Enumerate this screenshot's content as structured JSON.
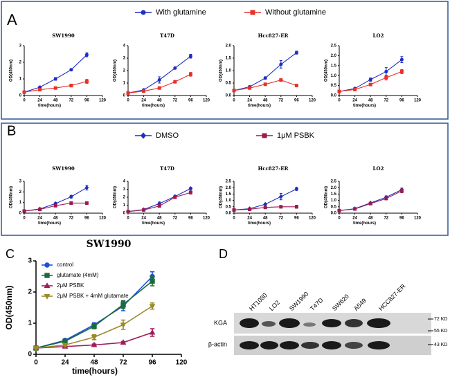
{
  "panel_labels": [
    "A",
    "B",
    "C",
    "D"
  ],
  "chart_data": [
    {
      "type": "line",
      "title": "SW1990",
      "xlabel": "time(hours)",
      "ylabel": "OD(450nm)",
      "x": [
        0,
        24,
        48,
        72,
        96
      ],
      "xlim": [
        0,
        120
      ],
      "xticks": [
        0,
        24,
        48,
        72,
        96,
        120
      ],
      "ylim": [
        0,
        3
      ],
      "yticks": [
        0,
        1,
        2,
        3
      ],
      "series": [
        {
          "name": "With glutamine",
          "color": "#1f2fbf",
          "marker": "circle",
          "values": [
            0.2,
            0.5,
            1.0,
            1.55,
            2.45
          ],
          "errors": [
            0.03,
            0.05,
            0.08,
            0.06,
            0.12
          ]
        },
        {
          "name": "Without glutamine",
          "color": "#e8302a",
          "marker": "square",
          "values": [
            0.2,
            0.35,
            0.45,
            0.6,
            0.85
          ],
          "errors": [
            0.03,
            0.03,
            0.04,
            0.08,
            0.12
          ]
        }
      ]
    },
    {
      "type": "line",
      "title": "T47D",
      "xlabel": "time(hours)",
      "ylabel": "OD(450nm)",
      "x": [
        0,
        24,
        48,
        72,
        96
      ],
      "xlim": [
        0,
        120
      ],
      "xticks": [
        0,
        24,
        48,
        72,
        96,
        120
      ],
      "ylim": [
        0,
        4
      ],
      "yticks": [
        0,
        1,
        2,
        3,
        4
      ],
      "series": [
        {
          "color": "#1f2fbf",
          "marker": "circle",
          "values": [
            0.2,
            0.45,
            1.25,
            2.2,
            3.15
          ],
          "errors": [
            0.03,
            0.05,
            0.25,
            0.08,
            0.15
          ]
        },
        {
          "color": "#e8302a",
          "marker": "square",
          "values": [
            0.2,
            0.35,
            0.6,
            1.1,
            1.7
          ],
          "errors": [
            0.03,
            0.03,
            0.06,
            0.1,
            0.15
          ]
        }
      ]
    },
    {
      "type": "line",
      "title": "Hcc827-ER",
      "xlabel": "time(hours)",
      "ylabel": "OD(450nm)",
      "x": [
        0,
        24,
        48,
        72,
        96
      ],
      "xlim": [
        0,
        120
      ],
      "xticks": [
        0,
        24,
        48,
        72,
        96,
        120
      ],
      "ylim": [
        0,
        2
      ],
      "yticks": [
        {
          "value": 0,
          "label": "0.0"
        },
        {
          "value": 0.5,
          "label": "0.5"
        },
        {
          "value": 1,
          "label": "1.0"
        },
        {
          "value": 1.5,
          "label": "1.5"
        },
        {
          "value": 2,
          "label": "2.0"
        }
      ],
      "series": [
        {
          "color": "#1f2fbf",
          "marker": "circle",
          "values": [
            0.2,
            0.35,
            0.7,
            1.25,
            1.72
          ],
          "errors": [
            0.02,
            0.03,
            0.05,
            0.15,
            0.06
          ]
        },
        {
          "color": "#e8302a",
          "marker": "square",
          "values": [
            0.2,
            0.3,
            0.45,
            0.62,
            0.4
          ],
          "errors": [
            0.02,
            0.02,
            0.03,
            0.05,
            0.02
          ]
        }
      ]
    },
    {
      "type": "line",
      "title": "LO2",
      "xlabel": "time(hours)",
      "ylabel": "OD(450nm)",
      "x": [
        0,
        24,
        48,
        72,
        96
      ],
      "xlim": [
        0,
        120
      ],
      "xticks": [
        0,
        24,
        48,
        72,
        96,
        120
      ],
      "ylim": [
        0,
        2.5
      ],
      "yticks": [
        {
          "value": 0,
          "label": "0.0"
        },
        {
          "value": 0.5,
          "label": "0.5"
        },
        {
          "value": 1,
          "label": "1.0"
        },
        {
          "value": 1.5,
          "label": "1.5"
        },
        {
          "value": 2,
          "label": "2.0"
        },
        {
          "value": 2.5,
          "label": "2.5"
        }
      ],
      "series": [
        {
          "color": "#1f2fbf",
          "marker": "circle",
          "values": [
            0.2,
            0.35,
            0.8,
            1.2,
            1.8
          ],
          "errors": [
            0.02,
            0.03,
            0.08,
            0.2,
            0.15
          ]
        },
        {
          "color": "#e8302a",
          "marker": "square",
          "values": [
            0.2,
            0.3,
            0.55,
            0.9,
            1.2
          ],
          "errors": [
            0.02,
            0.03,
            0.05,
            0.12,
            0.1
          ]
        }
      ]
    },
    {
      "type": "line",
      "title": "SW1990",
      "xlabel": "time(hours)",
      "ylabel": "OD(450nm)",
      "x": [
        0,
        24,
        48,
        72,
        96
      ],
      "xlim": [
        0,
        120
      ],
      "xticks": [
        0,
        24,
        48,
        72,
        96,
        120
      ],
      "ylim": [
        0,
        3
      ],
      "yticks": [
        0,
        1,
        2,
        3
      ],
      "series": [
        {
          "name": "DMSO",
          "color": "#1f2fbf",
          "marker": "diamond",
          "values": [
            0.2,
            0.4,
            0.9,
            1.55,
            2.4
          ],
          "errors": [
            0.03,
            0.05,
            0.1,
            0.12,
            0.22
          ]
        },
        {
          "name": "1μM PSBK",
          "color": "#9b1b4f",
          "marker": "square",
          "values": [
            0.2,
            0.35,
            0.7,
            0.95,
            0.95
          ],
          "errors": [
            0.03,
            0.04,
            0.1,
            0.12,
            0.12
          ]
        }
      ]
    },
    {
      "type": "line",
      "title": "T47D",
      "xlabel": "time(hours)",
      "ylabel": "OD(450nm)",
      "x": [
        0,
        24,
        48,
        72,
        96
      ],
      "xlim": [
        0,
        120
      ],
      "xticks": [
        0,
        24,
        48,
        72,
        96,
        120
      ],
      "ylim": [
        0,
        4
      ],
      "yticks": [
        0,
        1,
        2,
        3,
        4
      ],
      "series": [
        {
          "color": "#1f2fbf",
          "marker": "diamond",
          "values": [
            0.2,
            0.45,
            1.2,
            2.1,
            3.1
          ],
          "errors": [
            0.03,
            0.05,
            0.2,
            0.12,
            0.15
          ]
        },
        {
          "color": "#9b1b4f",
          "marker": "square",
          "values": [
            0.2,
            0.4,
            0.9,
            2.0,
            2.6
          ],
          "errors": [
            0.03,
            0.05,
            0.15,
            0.12,
            0.2
          ]
        }
      ]
    },
    {
      "type": "line",
      "title": "Hcc827-ER",
      "xlabel": "time(hours)",
      "ylabel": "OD(450nm)",
      "x": [
        0,
        24,
        48,
        72,
        96
      ],
      "xlim": [
        0,
        120
      ],
      "xticks": [
        0,
        24,
        48,
        72,
        96,
        120
      ],
      "ylim": [
        0,
        2.5
      ],
      "yticks": [
        {
          "value": 0,
          "label": "0.0"
        },
        {
          "value": 0.5,
          "label": "0.5"
        },
        {
          "value": 1,
          "label": "1.0"
        },
        {
          "value": 1.5,
          "label": "1.5"
        },
        {
          "value": 2,
          "label": "2.0"
        },
        {
          "value": 2.5,
          "label": "2.5"
        }
      ],
      "series": [
        {
          "color": "#1f2fbf",
          "marker": "diamond",
          "values": [
            0.25,
            0.35,
            0.7,
            1.3,
            1.9
          ],
          "errors": [
            0.02,
            0.03,
            0.06,
            0.25,
            0.12
          ]
        },
        {
          "color": "#9b1b4f",
          "marker": "square",
          "values": [
            0.25,
            0.3,
            0.45,
            0.5,
            0.5
          ],
          "errors": [
            0.02,
            0.03,
            0.08,
            0.1,
            0.12
          ]
        }
      ]
    },
    {
      "type": "line",
      "title": "LO2",
      "xlabel": "time(hours)",
      "ylabel": "OD(450nm)",
      "x": [
        0,
        24,
        48,
        72,
        96
      ],
      "xlim": [
        0,
        120
      ],
      "xticks": [
        0,
        24,
        48,
        72,
        96,
        120
      ],
      "ylim": [
        0,
        2.5
      ],
      "yticks": [
        {
          "value": 0,
          "label": "0.0"
        },
        {
          "value": 0.5,
          "label": "0.5"
        },
        {
          "value": 1,
          "label": "1.0"
        },
        {
          "value": 1.5,
          "label": "1.5"
        },
        {
          "value": 2,
          "label": "2.0"
        },
        {
          "value": 2.5,
          "label": "2.5"
        }
      ],
      "series": [
        {
          "color": "#1f2fbf",
          "marker": "diamond",
          "values": [
            0.2,
            0.35,
            0.8,
            1.25,
            1.85
          ],
          "errors": [
            0.02,
            0.03,
            0.05,
            0.1,
            0.12
          ]
        },
        {
          "color": "#9b1b4f",
          "marker": "square",
          "values": [
            0.2,
            0.33,
            0.75,
            1.15,
            1.75
          ],
          "errors": [
            0.02,
            0.03,
            0.05,
            0.1,
            0.15
          ]
        }
      ]
    },
    {
      "type": "line",
      "title": "SW1990",
      "xlabel": "time(hours)",
      "ylabel": "OD(450nm)",
      "x": [
        0,
        24,
        48,
        72,
        96
      ],
      "xlim": [
        0,
        120
      ],
      "xticks": [
        0,
        24,
        48,
        72,
        96,
        120
      ],
      "ylim": [
        0,
        3
      ],
      "yticks": [
        0,
        1,
        2,
        3
      ],
      "legend": "upper left",
      "series": [
        {
          "name": "control",
          "color": "#1f4fd6",
          "marker": "circle",
          "values": [
            0.2,
            0.45,
            0.95,
            1.55,
            2.5
          ],
          "errors": [
            0.03,
            0.04,
            0.06,
            0.15,
            0.15
          ]
        },
        {
          "name": "glutamate (4mM)",
          "color": "#1a6b3a",
          "marker": "square",
          "values": [
            0.2,
            0.42,
            0.9,
            1.6,
            2.35
          ],
          "errors": [
            0.03,
            0.04,
            0.08,
            0.12,
            0.15
          ]
        },
        {
          "name": "2μM PSBK",
          "color": "#a01d5a",
          "marker": "triangle",
          "values": [
            0.2,
            0.25,
            0.3,
            0.38,
            0.7
          ],
          "errors": [
            0.02,
            0.03,
            0.03,
            0.03,
            0.12
          ]
        },
        {
          "name": "2μM PSBK + 4mM glutamate",
          "color": "#9a8a2a",
          "marker": "triangle-down",
          "values": [
            0.2,
            0.3,
            0.55,
            0.95,
            1.55
          ],
          "errors": [
            0.02,
            0.03,
            0.08,
            0.15,
            0.1
          ]
        }
      ]
    }
  ],
  "blot": {
    "lanes": [
      "HT1080",
      "LO2",
      "SW1990",
      "T47D",
      "SW620",
      "A549",
      "HCC827-ER"
    ],
    "rows": [
      "KGA",
      "β-actin"
    ],
    "markers": [
      "72 KD",
      "55 KD",
      "43 KD"
    ]
  }
}
